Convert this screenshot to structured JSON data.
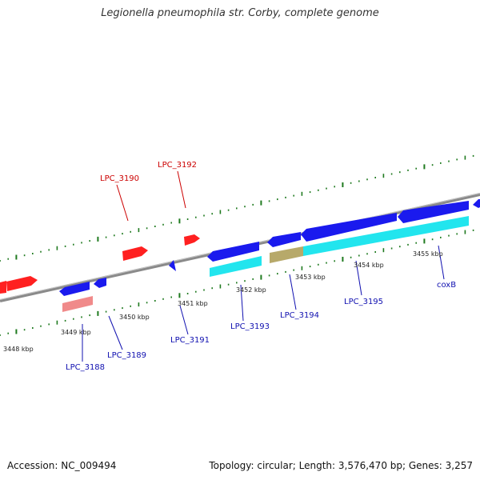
{
  "title": "Legionella pneumophila str. Corby, complete genome",
  "footer": {
    "accession": "Accession: NC_009494",
    "summary": "Topology: circular; Length: 3,576,470 bp; Genes: 3,257"
  },
  "colors": {
    "forward_gene": "#ff2020",
    "forward_gene_label": "#cc0000",
    "reverse_gene": "#1a1aee",
    "reverse_gene_label": "#1010b0",
    "cds": "#22e5ee",
    "pseudo_rna": "#b7a96a",
    "rrna_like": "#f08a8a",
    "backbone": "#8a8a8a",
    "tick": "#1f7a1f"
  },
  "ticks": [
    "3448 kbp",
    "3449 kbp",
    "3450 kbp",
    "3451 kbp",
    "3452 kbp",
    "3453 kbp",
    "3454 kbp",
    "3455 kbp"
  ],
  "gene_labels": {
    "forward": [
      "LPC_3190",
      "LPC_3192"
    ],
    "reverse": [
      "LPC_3188",
      "LPC_3189",
      "LPC_3191",
      "LPC_3193",
      "LPC_3194",
      "LPC_3195",
      "coxB"
    ]
  }
}
